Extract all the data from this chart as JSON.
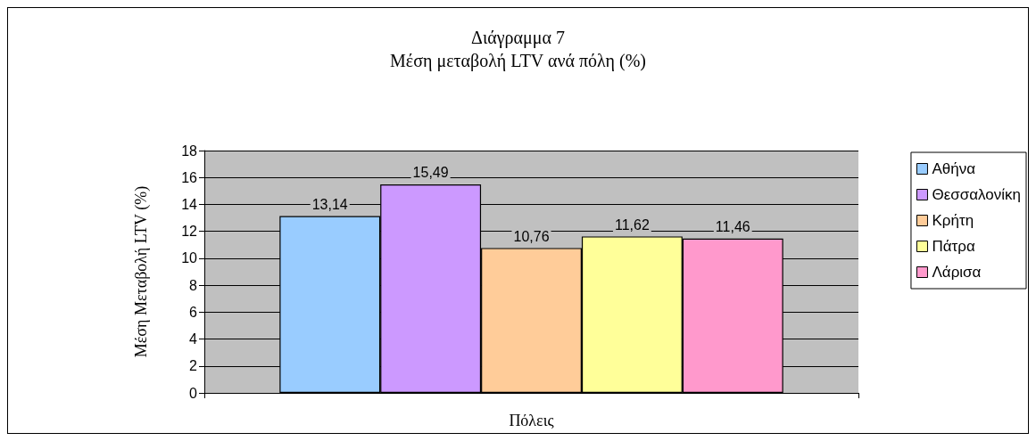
{
  "chart_data": {
    "type": "bar",
    "title": "Διάγραμμα 7",
    "subtitle": "Μέση μεταβολή LTV ανά πόλη (%)",
    "xlabel": "Πόλεις",
    "ylabel": "Μέση Μεταβολή LTV (%)",
    "categories": [
      null
    ],
    "series": [
      {
        "name": "Αθήνα",
        "color": "#99ccff",
        "values": [
          13.14
        ],
        "value_labels": [
          "13,14"
        ]
      },
      {
        "name": "Θεσσαλονίκη",
        "color": "#cc99ff",
        "values": [
          15.49
        ],
        "value_labels": [
          "15,49"
        ]
      },
      {
        "name": "Κρήτη",
        "color": "#ffcc99",
        "values": [
          10.76
        ],
        "value_labels": [
          "10,76"
        ]
      },
      {
        "name": "Πάτρα",
        "color": "#ffff99",
        "values": [
          11.62
        ],
        "value_labels": [
          "11,62"
        ]
      },
      {
        "name": "Λάρισα",
        "color": "#ff99cc",
        "values": [
          11.46
        ],
        "value_labels": [
          "11,46"
        ]
      }
    ],
    "ylim": [
      0,
      18
    ],
    "yticks": [
      0,
      2,
      4,
      6,
      8,
      10,
      12,
      14,
      16,
      18
    ],
    "grid": "y",
    "legend": "right"
  }
}
